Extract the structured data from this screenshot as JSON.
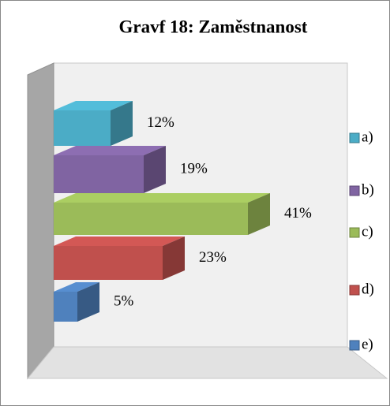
{
  "chart_data": {
    "type": "bar",
    "orientation": "horizontal",
    "title": "Gravf 18: Zaměstnanost",
    "categories": [
      "a)",
      "b)",
      "c)",
      "d)",
      "e)"
    ],
    "values": [
      12,
      19,
      41,
      23,
      5
    ],
    "value_labels": [
      "12%",
      "19%",
      "41%",
      "23%",
      "5%"
    ],
    "colors": [
      "#4bacc6",
      "#8064a2",
      "#9bbb59",
      "#c0504d",
      "#4f81bd"
    ],
    "legend": "right"
  }
}
